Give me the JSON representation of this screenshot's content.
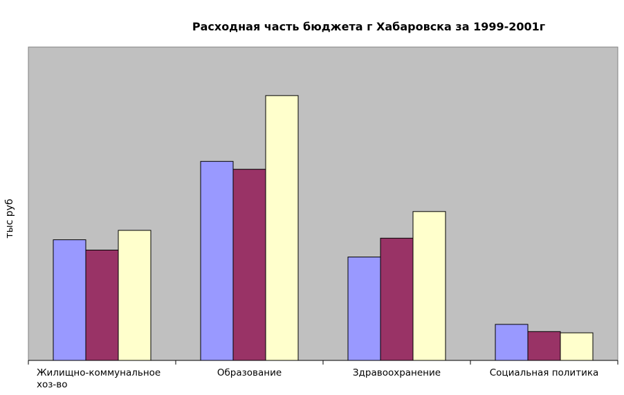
{
  "chart_data": {
    "type": "bar",
    "title": "Расходная часть бюджета г Хабаровска за 1999-2001г",
    "ylabel": "тыс руб",
    "xlabel": "",
    "categories": [
      [
        "Жилищно-коммунальное",
        "хоз-во"
      ],
      [
        "Образование"
      ],
      [
        "Здравоохранение"
      ],
      [
        "Социальная политика"
      ]
    ],
    "series": [
      {
        "color": "#9999ff",
        "values": [
          385,
          635,
          330,
          115
        ]
      },
      {
        "color": "#993366",
        "values": [
          352,
          610,
          390,
          92
        ]
      },
      {
        "color": "#ffffcc",
        "values": [
          415,
          845,
          475,
          88
        ]
      }
    ],
    "ylim": [
      0,
      1000
    ],
    "plot_background": "#c0c0c0",
    "gridlines": false,
    "legend": "none",
    "y_tick_labels_shown": false
  }
}
